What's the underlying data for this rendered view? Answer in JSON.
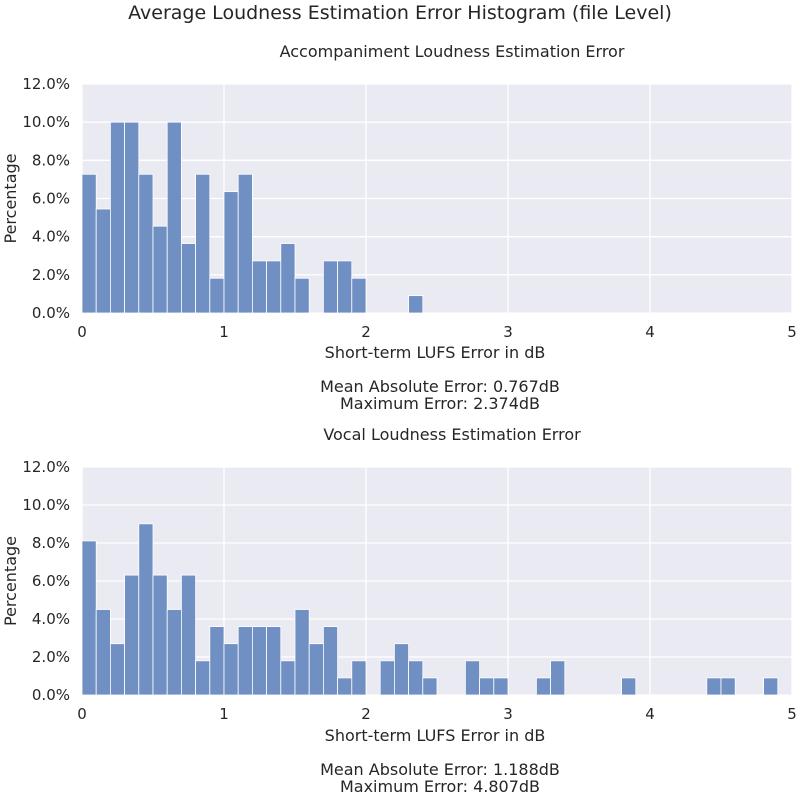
{
  "figure_title": "Average Loudness Estimation Error Histogram (file Level)",
  "chart_data": [
    {
      "type": "bar",
      "title": "Accompaniment Loudness Estimation Error",
      "xlabel": "Short-term LUFS Error in dB",
      "ylabel": "Percentage",
      "xlim": [
        0,
        5
      ],
      "ylim": [
        0,
        12
      ],
      "bin_width": 0.1,
      "x_ticks": [
        "0",
        "1",
        "2",
        "3",
        "4",
        "5"
      ],
      "y_ticks": [
        "0.0%",
        "2.0%",
        "4.0%",
        "6.0%",
        "8.0%",
        "10.0%",
        "12.0%"
      ],
      "bin_starts": [
        0.0,
        0.1,
        0.2,
        0.3,
        0.4,
        0.5,
        0.6,
        0.7,
        0.8,
        0.9,
        1.0,
        1.1,
        1.2,
        1.3,
        1.4,
        1.5,
        1.6,
        1.7,
        1.8,
        1.9,
        2.0,
        2.1,
        2.2,
        2.3
      ],
      "values": [
        7.27,
        5.45,
        10.0,
        10.0,
        7.27,
        4.55,
        10.0,
        3.64,
        7.27,
        1.82,
        6.36,
        7.27,
        2.73,
        2.73,
        3.64,
        1.82,
        0,
        2.73,
        2.73,
        1.82,
        0,
        0,
        0,
        0.91
      ],
      "grid": true,
      "caption_lines": [
        "Mean Absolute Error: 0.767dB",
        "Maximum Error: 2.374dB"
      ]
    },
    {
      "type": "bar",
      "title": "Vocal Loudness Estimation Error",
      "xlabel": "Short-term LUFS Error in dB",
      "ylabel": "Percentage",
      "xlim": [
        0,
        5
      ],
      "ylim": [
        0,
        12
      ],
      "bin_width": 0.1,
      "x_ticks": [
        "0",
        "1",
        "2",
        "3",
        "4",
        "5"
      ],
      "y_ticks": [
        "0.0%",
        "2.0%",
        "4.0%",
        "6.0%",
        "8.0%",
        "10.0%",
        "12.0%"
      ],
      "bin_starts": [
        0.0,
        0.1,
        0.2,
        0.3,
        0.4,
        0.5,
        0.6,
        0.7,
        0.8,
        0.9,
        1.0,
        1.1,
        1.2,
        1.3,
        1.4,
        1.5,
        1.6,
        1.7,
        1.8,
        1.9,
        2.0,
        2.1,
        2.2,
        2.3,
        2.4,
        2.5,
        2.6,
        2.7,
        2.8,
        2.9,
        3.0,
        3.1,
        3.2,
        3.3,
        3.4,
        3.5,
        3.6,
        3.7,
        3.8,
        3.9,
        4.0,
        4.1,
        4.2,
        4.3,
        4.4,
        4.5,
        4.6,
        4.7,
        4.8
      ],
      "values": [
        8.11,
        4.5,
        2.7,
        6.31,
        9.01,
        6.31,
        4.5,
        6.31,
        1.8,
        3.6,
        2.7,
        3.6,
        3.6,
        3.6,
        1.8,
        4.5,
        2.7,
        3.6,
        0.9,
        1.8,
        0,
        1.8,
        2.7,
        1.8,
        0.9,
        0,
        0,
        1.8,
        0.9,
        0.9,
        0,
        0,
        0.9,
        1.8,
        0,
        0,
        0,
        0,
        0.9,
        0,
        0,
        0,
        0,
        0,
        0.9,
        0.9,
        0,
        0,
        0.9
      ],
      "grid": true,
      "caption_lines": [
        "Mean Absolute Error: 1.188dB",
        "Maximum Error: 4.807dB"
      ]
    }
  ]
}
